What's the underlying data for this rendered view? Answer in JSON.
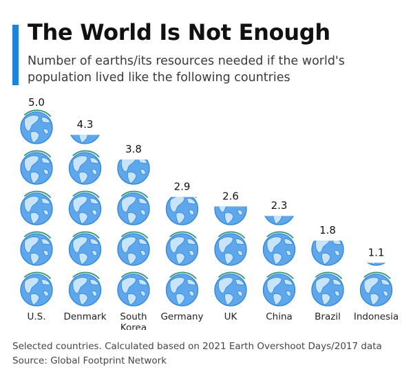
{
  "header": {
    "title": "The World Is Not Enough",
    "subtitle": "Number of earths/its resources needed if the world's population lived like the following countries"
  },
  "footer": {
    "note": "Selected countries. Calculated based on 2021 Earth Overshoot Days/2017 data",
    "source": "Source: Global Footprint Network"
  },
  "colors": {
    "accent": "#1f84d9",
    "globe_ocean": "#5ea7ec",
    "globe_land": "#c8e4fb",
    "globe_outline": "#2f86d6",
    "globe_arc": "#3f9a86"
  },
  "icons": {
    "unit": "earth-globe-icon"
  },
  "chart_data": {
    "type": "bar",
    "unit_icon": "earth-globe-icon",
    "categories": [
      "U.S.",
      "Denmark",
      "South Korea",
      "Germany",
      "UK",
      "China",
      "Brazil",
      "Indonesia"
    ],
    "values": [
      5.0,
      4.3,
      3.8,
      2.9,
      2.6,
      2.3,
      1.8,
      1.1
    ],
    "value_labels": [
      "5.0",
      "4.3",
      "3.8",
      "2.9",
      "2.6",
      "2.3",
      "1.8",
      "1.1"
    ],
    "title": "The World Is Not Enough",
    "subtitle": "Number of earths/its resources needed if the world's population lived like the following countries"
  }
}
